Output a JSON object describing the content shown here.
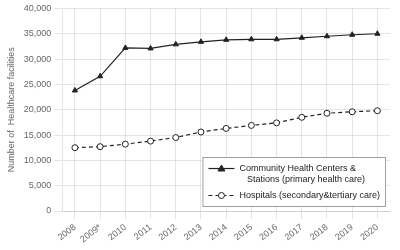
{
  "chart_data": {
    "type": "line",
    "x": [
      2008,
      2009,
      2010,
      2011,
      2012,
      2013,
      2014,
      2015,
      2016,
      2017,
      2018,
      2019,
      2020
    ],
    "series": [
      {
        "name": "Community Health Centers &\n   Stations (primary health care)",
        "color": "#222222",
        "marker": "triangle",
        "line_style": "solid",
        "values": [
          23800,
          26600,
          32200,
          32100,
          32900,
          33400,
          33800,
          33900,
          33900,
          34200,
          34500,
          34800,
          35000
        ]
      },
      {
        "name": "Hospitals (secondary&tertiary care)",
        "color": "#222222",
        "marker": "circle",
        "line_style": "dashed",
        "values": [
          12500,
          12700,
          13200,
          13800,
          14500,
          15600,
          16300,
          16900,
          17400,
          18500,
          19300,
          19600,
          19800
        ]
      }
    ],
    "ylabel": "Number of  Healthcare facilities",
    "xlim": [
      2007.5,
      2020.5
    ],
    "xticks": [
      2008,
      {
        "value": 2009,
        "label": "2009*"
      },
      2010,
      2011,
      2012,
      2013,
      2014,
      2015,
      2016,
      2017,
      2018,
      2019,
      2020
    ],
    "ylim": [
      0,
      40000
    ],
    "yticks": [
      0,
      {
        "value": 5000,
        "label": "5,000"
      },
      {
        "value": 10000,
        "label": "10,000"
      },
      {
        "value": 15000,
        "label": "15,000"
      },
      {
        "value": 20000,
        "label": "20,000"
      },
      {
        "value": 25000,
        "label": "25,000"
      },
      {
        "value": 30000,
        "label": "30,000"
      },
      {
        "value": 35000,
        "label": "35,000"
      },
      {
        "value": 40000,
        "label": "40,000"
      }
    ],
    "grid": true,
    "legend": "lower right"
  }
}
